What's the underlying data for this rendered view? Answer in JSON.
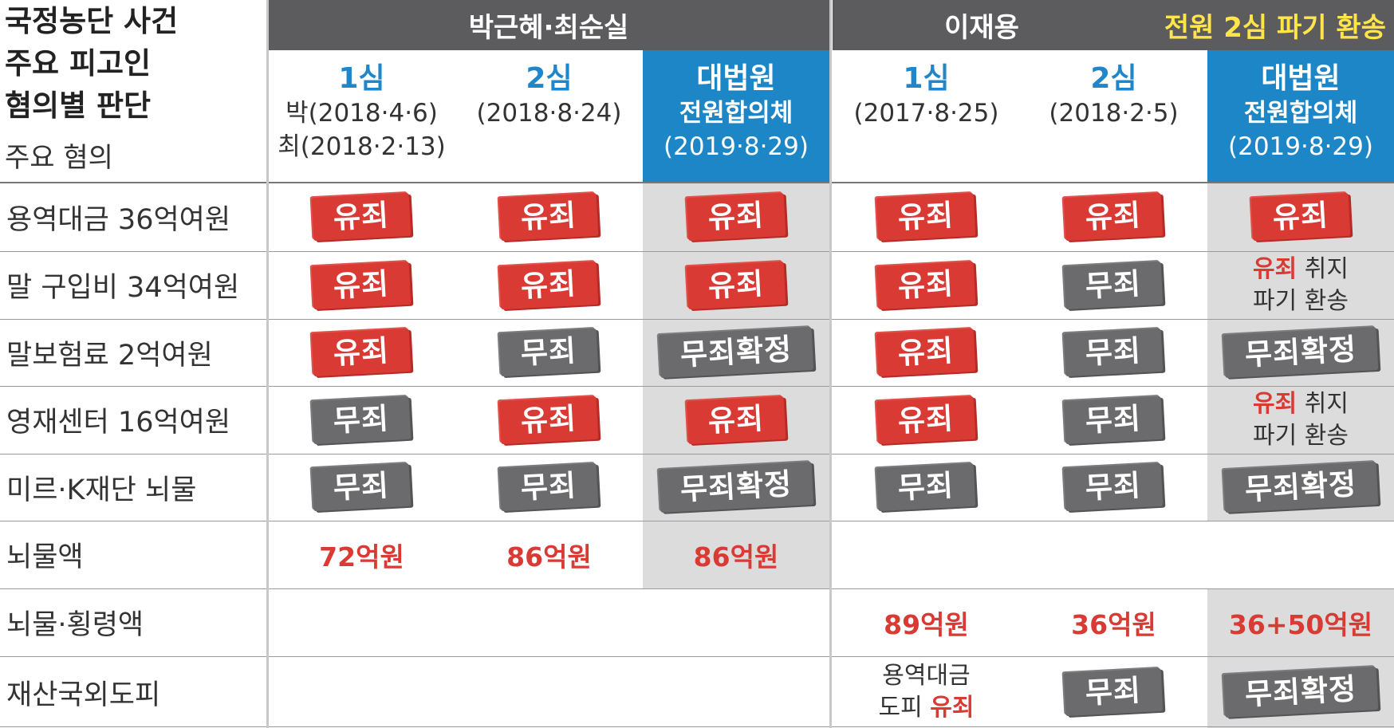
{
  "title_lines": [
    "국정농단 사건",
    "주요 피고인",
    "혐의별 판단"
  ],
  "subtitle": "주요 혐의",
  "groups": {
    "park": "박근혜·최순실",
    "lee": "이재용",
    "lee_note": "전원 2심 파기 환송"
  },
  "columns": [
    {
      "level": "1심",
      "lines": [
        "박(2018·4·6)",
        "최(2018·2·13)"
      ]
    },
    {
      "level": "2심",
      "lines": [
        "(2018·8·24)"
      ]
    },
    {
      "level": "대법원",
      "lines": [
        "전원합의체",
        "(2019·8·29)"
      ]
    },
    {
      "level": "1심",
      "lines": [
        "(2017·8·25)"
      ]
    },
    {
      "level": "2심",
      "lines": [
        "(2018·2·5)"
      ]
    },
    {
      "level": "대법원",
      "lines": [
        "전원합의체",
        "(2019·8·29)"
      ]
    }
  ],
  "rows": [
    {
      "label": "용역대금 36억여원",
      "cells": [
        "유죄",
        "유죄",
        "유죄",
        "유죄",
        "유죄",
        "유죄"
      ]
    },
    {
      "label": "말 구입비 34억여원",
      "cells": [
        "유죄",
        "유죄",
        "유죄",
        "유죄",
        "무죄",
        "유죄 취지|파기 환송"
      ]
    },
    {
      "label": "말보험료 2억여원",
      "cells": [
        "유죄",
        "무죄",
        "무죄확정",
        "유죄",
        "무죄",
        "무죄확정"
      ]
    },
    {
      "label": "영재센터 16억여원",
      "cells": [
        "무죄",
        "유죄",
        "유죄",
        "유죄",
        "무죄",
        "유죄 취지|파기 환송"
      ]
    },
    {
      "label": "미르·K재단 뇌물",
      "cells": [
        "무죄",
        "무죄",
        "무죄확정",
        "무죄",
        "무죄",
        "무죄확정"
      ]
    },
    {
      "label": "뇌물액",
      "cells": [
        "72억원",
        "86억원",
        "86억원",
        "",
        "",
        ""
      ]
    },
    {
      "label": "뇌물·횡령액",
      "cells": [
        "",
        "",
        "",
        "89억원",
        "36억원",
        "36+50억원"
      ]
    },
    {
      "label": "재산국외도피",
      "cells": [
        "",
        "",
        "",
        "용역대금|도피 유죄",
        "무죄",
        "무죄확정"
      ]
    }
  ],
  "colors": {
    "guilty": "#d93a34",
    "not_guilty": "#6b6b6d",
    "header_bar": "#5c5c5e",
    "highlight": "#1d86c6",
    "note_yellow": "#ffe44a"
  }
}
